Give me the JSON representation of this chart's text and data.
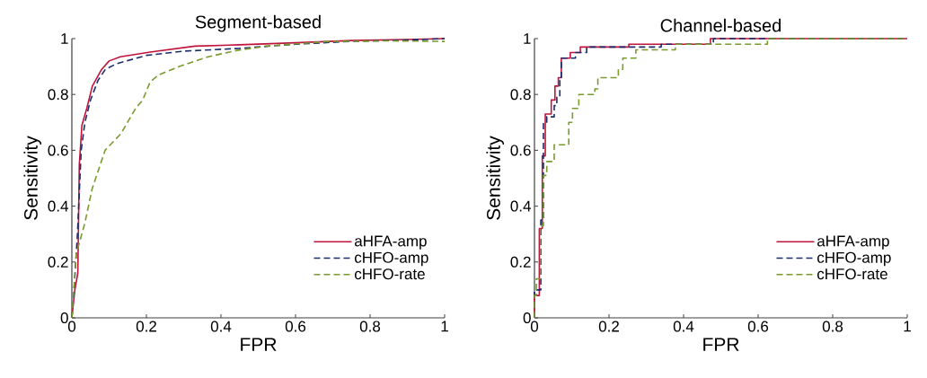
{
  "chart_data": [
    {
      "type": "line",
      "title": "Segment-based",
      "xlabel": "FPR",
      "ylabel": "Sensitivity",
      "xlim": [
        0,
        1
      ],
      "ylim": [
        0,
        1
      ],
      "xticks": [
        0,
        0.2,
        0.4,
        0.6,
        0.8,
        1
      ],
      "yticks": [
        0,
        0.2,
        0.4,
        0.6,
        0.8,
        1
      ],
      "legend": "bottom right",
      "grid": false,
      "series": [
        {
          "name": "aHFA-amp",
          "color": "#c0143c",
          "line_style": "solid",
          "x": [
            0,
            0.008,
            0.016,
            0.02,
            0.027,
            0.04,
            0.055,
            0.08,
            0.1,
            0.13,
            0.21,
            0.33,
            0.45,
            0.6,
            0.75,
            0.9,
            1
          ],
          "values": [
            0,
            0.1,
            0.16,
            0.55,
            0.69,
            0.75,
            0.83,
            0.89,
            0.92,
            0.935,
            0.952,
            0.973,
            0.978,
            0.985,
            0.993,
            0.997,
            1
          ]
        },
        {
          "name": "cHFO-amp",
          "color": "#1a2d6b",
          "line_style": "dashed",
          "x": [
            0,
            0.005,
            0.015,
            0.025,
            0.035,
            0.05,
            0.07,
            0.09,
            0.12,
            0.2,
            0.3,
            0.45,
            0.6,
            0.75,
            0.9,
            1
          ],
          "values": [
            0,
            0.08,
            0.3,
            0.6,
            0.7,
            0.78,
            0.85,
            0.89,
            0.91,
            0.94,
            0.955,
            0.965,
            0.98,
            0.99,
            0.995,
            1
          ]
        },
        {
          "name": "cHFO-rate",
          "color": "#7a9a2e",
          "line_style": "dashed",
          "x": [
            0,
            0.012,
            0.035,
            0.054,
            0.089,
            0.132,
            0.171,
            0.19,
            0.21,
            0.233,
            0.288,
            0.366,
            0.44,
            0.52,
            0.68,
            0.85,
            1
          ],
          "values": [
            0,
            0.23,
            0.34,
            0.46,
            0.6,
            0.66,
            0.75,
            0.78,
            0.845,
            0.87,
            0.9,
            0.935,
            0.957,
            0.973,
            0.989,
            0.992,
            0.99
          ]
        }
      ]
    },
    {
      "type": "line",
      "title": "Channel-based",
      "xlabel": "FPR",
      "ylabel": "Sensitivity",
      "xlim": [
        0,
        1
      ],
      "ylim": [
        0,
        1
      ],
      "xticks": [
        0,
        0.2,
        0.4,
        0.6,
        0.8,
        1
      ],
      "yticks": [
        0,
        0.2,
        0.4,
        0.6,
        0.8,
        1
      ],
      "legend": "bottom right",
      "grid": false,
      "series": [
        {
          "name": "aHFA-amp",
          "color": "#c0143c",
          "line_style": "solid",
          "x": [
            0,
            0,
            0.013,
            0.013,
            0.021,
            0.021,
            0.029,
            0.029,
            0.045,
            0.045,
            0.055,
            0.055,
            0.064,
            0.064,
            0.072,
            0.072,
            0.096,
            0.096,
            0.123,
            0.123,
            0.253,
            0.253,
            0.472,
            0.472,
            1
          ],
          "values": [
            0,
            0.08,
            0.08,
            0.32,
            0.32,
            0.58,
            0.58,
            0.73,
            0.73,
            0.78,
            0.78,
            0.83,
            0.83,
            0.86,
            0.86,
            0.93,
            0.93,
            0.95,
            0.95,
            0.97,
            0.97,
            0.98,
            0.98,
            1,
            1
          ]
        },
        {
          "name": "cHFO-amp",
          "color": "#1a2d6b",
          "line_style": "dashed",
          "x": [
            0,
            0,
            0.017,
            0.017,
            0.024,
            0.024,
            0.033,
            0.033,
            0.053,
            0.053,
            0.06,
            0.06,
            0.068,
            0.068,
            0.072,
            0.072,
            0.11,
            0.11,
            0.14,
            0.14,
            0.34,
            0.34,
            0.48,
            0.48,
            1
          ],
          "values": [
            0,
            0.1,
            0.1,
            0.35,
            0.35,
            0.7,
            0.7,
            0.72,
            0.72,
            0.76,
            0.76,
            0.79,
            0.79,
            0.85,
            0.85,
            0.93,
            0.93,
            0.95,
            0.95,
            0.97,
            0.97,
            0.98,
            0.98,
            1,
            1
          ]
        },
        {
          "name": "cHFO-rate",
          "color": "#7a9a2e",
          "line_style": "dashed",
          "x": [
            0,
            0,
            0.005,
            0.005,
            0.016,
            0.016,
            0.024,
            0.024,
            0.033,
            0.033,
            0.053,
            0.053,
            0.092,
            0.092,
            0.102,
            0.102,
            0.119,
            0.119,
            0.162,
            0.162,
            0.17,
            0.17,
            0.225,
            0.225,
            0.237,
            0.237,
            0.272,
            0.272,
            0.378,
            0.378,
            0.625,
            0.625,
            1
          ],
          "values": [
            0,
            0.08,
            0.08,
            0.14,
            0.14,
            0.33,
            0.33,
            0.51,
            0.51,
            0.56,
            0.56,
            0.62,
            0.62,
            0.7,
            0.7,
            0.75,
            0.75,
            0.8,
            0.8,
            0.82,
            0.82,
            0.86,
            0.86,
            0.89,
            0.89,
            0.93,
            0.93,
            0.96,
            0.96,
            0.98,
            0.98,
            1,
            1
          ]
        }
      ]
    }
  ]
}
